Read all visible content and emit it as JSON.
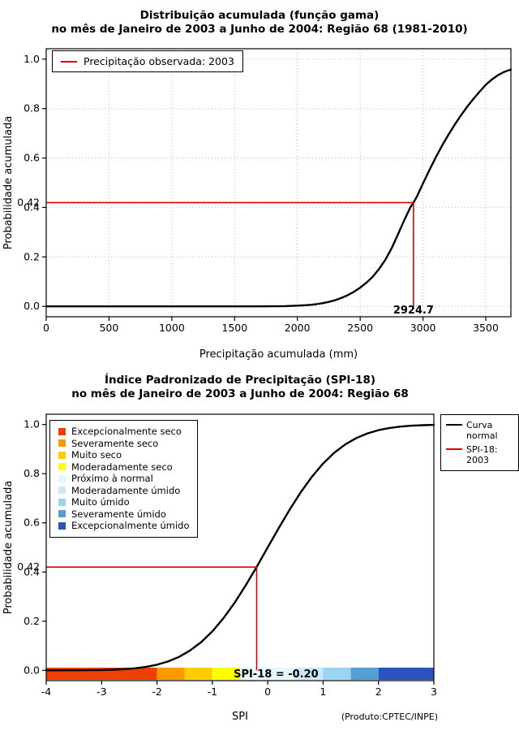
{
  "footer": {
    "text": "(Produto:CPTEC/INPE)"
  },
  "chart_data": [
    {
      "type": "line",
      "title_line1": "Distribuição acumulada (função gama)",
      "title_line2": "no mês de Janeiro de 2003 a Junho de 2004: Região 68 (1981-2010)",
      "xlabel": "Precipitação acumulada (mm)",
      "ylabel": "Probabilidade acumulada",
      "xlim": [
        0,
        3700
      ],
      "ylim": [
        0,
        1
      ],
      "xticks": [
        0,
        500,
        1000,
        1500,
        2000,
        2500,
        3000,
        3500
      ],
      "yticks": [
        "0.0",
        "0.2",
        "0.4",
        "0.6",
        "0.8",
        "1.0"
      ],
      "grid": true,
      "series": {
        "name": "Distribuição gama acumulada",
        "color": "#000000",
        "points": [
          [
            0,
            0
          ],
          [
            300,
            0
          ],
          [
            600,
            0
          ],
          [
            900,
            0
          ],
          [
            1200,
            0
          ],
          [
            1500,
            0
          ],
          [
            1700,
            0.0002
          ],
          [
            1900,
            0.001
          ],
          [
            2000,
            0.003
          ],
          [
            2100,
            0.006
          ],
          [
            2150,
            0.009
          ],
          [
            2200,
            0.013
          ],
          [
            2250,
            0.018
          ],
          [
            2300,
            0.025
          ],
          [
            2350,
            0.034
          ],
          [
            2400,
            0.045
          ],
          [
            2450,
            0.059
          ],
          [
            2500,
            0.076
          ],
          [
            2550,
            0.096
          ],
          [
            2600,
            0.12
          ],
          [
            2650,
            0.151
          ],
          [
            2700,
            0.188
          ],
          [
            2750,
            0.235
          ],
          [
            2800,
            0.29
          ],
          [
            2850,
            0.348
          ],
          [
            2900,
            0.401
          ],
          [
            2924.7,
            0.42
          ],
          [
            2950,
            0.443
          ],
          [
            3000,
            0.497
          ],
          [
            3050,
            0.55
          ],
          [
            3100,
            0.601
          ],
          [
            3150,
            0.648
          ],
          [
            3200,
            0.692
          ],
          [
            3250,
            0.733
          ],
          [
            3300,
            0.771
          ],
          [
            3350,
            0.806
          ],
          [
            3400,
            0.838
          ],
          [
            3450,
            0.868
          ],
          [
            3500,
            0.896
          ],
          [
            3550,
            0.918
          ],
          [
            3600,
            0.936
          ],
          [
            3650,
            0.949
          ],
          [
            3700,
            0.958
          ]
        ]
      },
      "reference": {
        "h": 0.42,
        "h_label": "0.42",
        "v": 2924.7,
        "v_label": "2924.7",
        "color": "#dd0000"
      },
      "legend": [
        {
          "label": "Precipitação observada: 2003",
          "color": "#dd0000"
        }
      ]
    },
    {
      "type": "line",
      "title_line1": "Índice Padronizado de Precipitação (SPI-18)",
      "title_line2": "no mês de Janeiro de 2003 a Junho de 2004: Região 68",
      "xlabel": "SPI",
      "ylabel": "Probabilidade acumulada",
      "xlim": [
        -4,
        3
      ],
      "ylim": [
        0,
        1
      ],
      "xticks": [
        -4,
        -3,
        -2,
        -1,
        0,
        1,
        2,
        3
      ],
      "yticks": [
        "0.0",
        "0.2",
        "0.4",
        "0.6",
        "0.8",
        "1.0"
      ],
      "grid": false,
      "series": {
        "name": "Curva normal",
        "color": "#000000",
        "points": [
          [
            -4,
            0.0
          ],
          [
            -3.8,
            0.0001
          ],
          [
            -3.6,
            0.0002
          ],
          [
            -3.4,
            0.0003
          ],
          [
            -3.2,
            0.0007
          ],
          [
            -3,
            0.0013
          ],
          [
            -2.8,
            0.0026
          ],
          [
            -2.6,
            0.0047
          ],
          [
            -2.4,
            0.0082
          ],
          [
            -2.2,
            0.0139
          ],
          [
            -2,
            0.0228
          ],
          [
            -1.8,
            0.0359
          ],
          [
            -1.6,
            0.0548
          ],
          [
            -1.4,
            0.0808
          ],
          [
            -1.2,
            0.1151
          ],
          [
            -1,
            0.1587
          ],
          [
            -0.8,
            0.2119
          ],
          [
            -0.6,
            0.2743
          ],
          [
            -0.4,
            0.3446
          ],
          [
            -0.2,
            0.4207
          ],
          [
            0,
            0.5
          ],
          [
            0.2,
            0.5793
          ],
          [
            0.4,
            0.6554
          ],
          [
            0.6,
            0.7257
          ],
          [
            0.8,
            0.7881
          ],
          [
            1,
            0.8413
          ],
          [
            1.2,
            0.8849
          ],
          [
            1.4,
            0.9192
          ],
          [
            1.6,
            0.9452
          ],
          [
            1.8,
            0.9641
          ],
          [
            2,
            0.9772
          ],
          [
            2.2,
            0.9861
          ],
          [
            2.4,
            0.9918
          ],
          [
            2.6,
            0.9953
          ],
          [
            2.8,
            0.9974
          ],
          [
            3,
            0.9987
          ]
        ]
      },
      "reference": {
        "h": 0.42,
        "h_label": "0.42",
        "v": -0.2,
        "v_label": "SPI-18 = -0.20",
        "v_label_x": 0.15,
        "color": "#dd0000"
      },
      "lines_legend": [
        {
          "label": "Curva normal",
          "color": "#000000"
        },
        {
          "label": "SPI-18: 2003",
          "color": "#dd0000"
        }
      ],
      "categories_legend": [
        {
          "label": "Excepcionalmente seco",
          "color": "#ee4000"
        },
        {
          "label": "Severamente seco",
          "color": "#ff9900"
        },
        {
          "label": "Muito seco",
          "color": "#ffcc00"
        },
        {
          "label": "Moderadamente seco",
          "color": "#ffff00"
        },
        {
          "label": "Próximo à normal",
          "color": "#e7f7ff"
        },
        {
          "label": "Moderadamente úmido",
          "color": "#c9e8fa"
        },
        {
          "label": "Muito úmido",
          "color": "#9cd3f0"
        },
        {
          "label": "Severamente úmido",
          "color": "#569fd3"
        },
        {
          "label": "Excepcionalmente úmido",
          "color": "#2b53c0"
        }
      ],
      "colorbar": {
        "segments": [
          {
            "from": -4,
            "to": -2,
            "color": "#ee4000"
          },
          {
            "from": -2,
            "to": -1.5,
            "color": "#ff9900"
          },
          {
            "from": -1.5,
            "to": -1,
            "color": "#ffcc00"
          },
          {
            "from": -1,
            "to": -0.5,
            "color": "#ffff00"
          },
          {
            "from": -0.5,
            "to": 0.5,
            "color": "#e7f7ff"
          },
          {
            "from": 0.5,
            "to": 1,
            "color": "#c9e8fa"
          },
          {
            "from": 1,
            "to": 1.5,
            "color": "#9cd3f0"
          },
          {
            "from": 1.5,
            "to": 2,
            "color": "#569fd3"
          },
          {
            "from": 2,
            "to": 3,
            "color": "#2b53c0"
          }
        ]
      }
    }
  ]
}
